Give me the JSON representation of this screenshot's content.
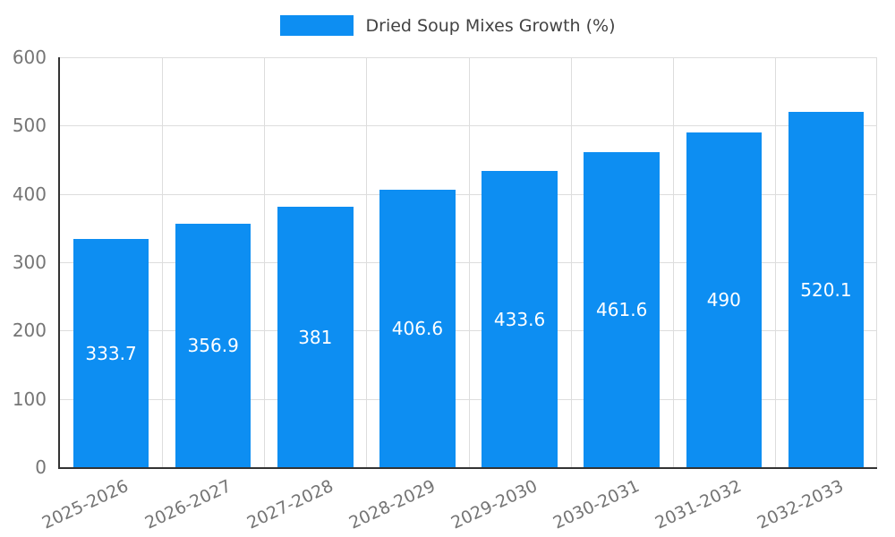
{
  "legend": {
    "label": "Dried Soup Mixes Growth (%)"
  },
  "colors": {
    "bar": "#0d8ef2",
    "axis": "#333333",
    "grid": "#dddddd",
    "tick_text": "#757575",
    "value_text": "#ffffff"
  },
  "chart_data": {
    "type": "bar",
    "title": "Dried Soup Mixes Growth (%)",
    "categories": [
      "2025-2026",
      "2026-2027",
      "2027-2028",
      "2028-2029",
      "2029-2030",
      "2030-2031",
      "2031-2032",
      "2032-2033"
    ],
    "values": [
      333.7,
      356.9,
      381,
      406.6,
      433.6,
      461.6,
      490,
      520.1
    ],
    "value_labels": [
      "333.7",
      "356.9",
      "381",
      "406.6",
      "433.6",
      "461.6",
      "490",
      "520.1"
    ],
    "xlabel": "",
    "ylabel": "",
    "ylim": [
      0,
      600
    ],
    "ytick_step": 100,
    "ytick_labels": [
      "0",
      "100",
      "200",
      "300",
      "400",
      "500",
      "600"
    ],
    "grid": true,
    "legend_position": "top",
    "bar_label_position": "center"
  }
}
